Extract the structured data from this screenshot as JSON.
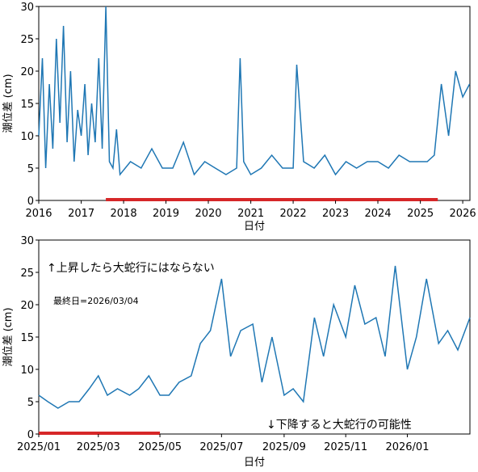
{
  "colors": {
    "series": "#1f77b4",
    "highlight": "#d62728",
    "axis": "#000000"
  },
  "chart_data": [
    {
      "type": "line",
      "ylabel": "潮位差 (cm)",
      "xlabel": "日付",
      "ylim": [
        0,
        30
      ],
      "xlim": [
        "2016-01-01",
        "2026-03-04"
      ],
      "y_ticks": [
        "0",
        "5",
        "10",
        "15",
        "20",
        "25",
        "30"
      ],
      "x_ticks": [
        "2016",
        "2017",
        "2018",
        "2019",
        "2020",
        "2021",
        "2022",
        "2023",
        "2024",
        "2025",
        "2026"
      ],
      "highlight_range": [
        "2017-08-01",
        "2025-05-31"
      ],
      "series": [
        {
          "x": [
            "2016-01",
            "2016-02",
            "2016-03",
            "2016-04",
            "2016-05",
            "2016-06",
            "2016-07",
            "2016-08",
            "2016-09",
            "2016-10",
            "2016-11",
            "2016-12",
            "2017-01",
            "2017-02",
            "2017-03",
            "2017-04",
            "2017-05",
            "2017-06",
            "2017-07",
            "2017-08",
            "2017-09",
            "2017-10",
            "2017-11",
            "2017-12",
            "2018-03",
            "2018-06",
            "2018-09",
            "2018-12",
            "2019-03",
            "2019-06",
            "2019-09",
            "2019-12",
            "2020-03",
            "2020-06",
            "2020-09",
            "2020-10",
            "2020-11",
            "2021-01",
            "2021-04",
            "2021-07",
            "2021-10",
            "2022-01",
            "2022-02",
            "2022-04",
            "2022-07",
            "2022-10",
            "2023-01",
            "2023-04",
            "2023-07",
            "2023-10",
            "2024-01",
            "2024-04",
            "2024-07",
            "2024-10",
            "2025-01",
            "2025-03",
            "2025-05",
            "2025-07",
            "2025-09",
            "2025-11",
            "2026-01",
            "2026-03"
          ],
          "y": [
            10,
            22,
            5,
            18,
            8,
            25,
            12,
            27,
            9,
            20,
            6,
            14,
            10,
            18,
            7,
            15,
            9,
            22,
            8,
            30,
            6,
            5,
            11,
            4,
            6,
            5,
            8,
            5,
            5,
            9,
            4,
            6,
            5,
            4,
            5,
            22,
            6,
            4,
            5,
            7,
            5,
            5,
            21,
            6,
            5,
            7,
            4,
            6,
            5,
            6,
            6,
            5,
            7,
            6,
            6,
            6,
            7,
            18,
            10,
            20,
            16,
            18
          ]
        }
      ]
    },
    {
      "type": "line",
      "ylabel": "潮位差 (cm)",
      "xlabel": "日付",
      "ylim": [
        0,
        30
      ],
      "xlim": [
        "2025-01-01",
        "2026-03-04"
      ],
      "y_ticks": [
        "0",
        "5",
        "10",
        "15",
        "20",
        "25",
        "30"
      ],
      "x_ticks": [
        "2025/01",
        "2025/03",
        "2025/05",
        "2025/07",
        "2025/09",
        "2025/11",
        "2026/01"
      ],
      "highlight_range": [
        "2025-01-01",
        "2025-05-01"
      ],
      "annotations": {
        "up": "↑上昇したら大蛇行にはならない",
        "last_day": "最終日=2026/03/04",
        "down": "↓下降すると大蛇行の可能性"
      },
      "series": [
        {
          "x": [
            "2025-01-01",
            "2025-01-10",
            "2025-01-20",
            "2025-01-31",
            "2025-02-10",
            "2025-02-20",
            "2025-03-01",
            "2025-03-10",
            "2025-03-20",
            "2025-04-01",
            "2025-04-10",
            "2025-04-20",
            "2025-05-01",
            "2025-05-10",
            "2025-05-20",
            "2025-06-01",
            "2025-06-10",
            "2025-06-20",
            "2025-07-01",
            "2025-07-10",
            "2025-07-20",
            "2025-08-01",
            "2025-08-10",
            "2025-08-20",
            "2025-09-01",
            "2025-09-10",
            "2025-09-20",
            "2025-10-01",
            "2025-10-10",
            "2025-10-20",
            "2025-11-01",
            "2025-11-10",
            "2025-11-20",
            "2025-12-01",
            "2025-12-10",
            "2025-12-20",
            "2026-01-01",
            "2026-01-10",
            "2026-01-20",
            "2026-02-01",
            "2026-02-10",
            "2026-02-20",
            "2026-03-04"
          ],
          "y": [
            6,
            5,
            4,
            5,
            5,
            7,
            9,
            6,
            7,
            6,
            7,
            9,
            6,
            6,
            8,
            9,
            14,
            16,
            24,
            12,
            16,
            17,
            8,
            15,
            6,
            7,
            5,
            18,
            12,
            20,
            15,
            23,
            17,
            18,
            12,
            26,
            10,
            15,
            24,
            14,
            16,
            13,
            18
          ]
        }
      ]
    }
  ]
}
